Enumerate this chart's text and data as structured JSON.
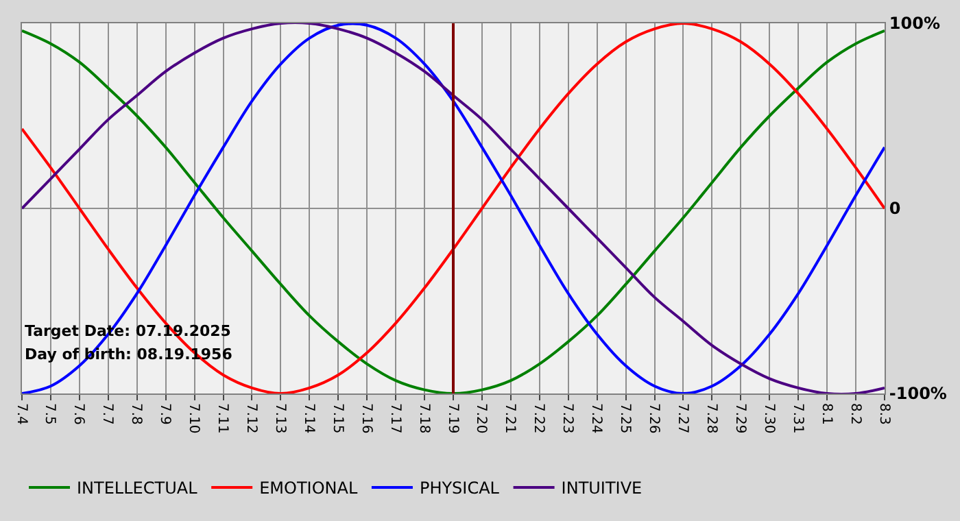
{
  "chart_data": {
    "type": "line",
    "categories": [
      "7.4",
      "7.5",
      "7.6",
      "7.7",
      "7.8",
      "7.9",
      "7.10",
      "7.11",
      "7.12",
      "7.13",
      "7.14",
      "7.15",
      "7.16",
      "7.17",
      "7.18",
      "7.19",
      "7.20",
      "7.21",
      "7.22",
      "7.23",
      "7.24",
      "7.25",
      "7.26",
      "7.27",
      "7.28",
      "7.29",
      "7.30",
      "7.31",
      "8.1",
      "8.2",
      "8.3"
    ],
    "series": [
      {
        "name": "INTELLECTUAL",
        "color": "#008000",
        "values": [
          0.96,
          0.89,
          0.79,
          0.65,
          0.5,
          0.33,
          0.14,
          -0.05,
          -0.23,
          -0.41,
          -0.58,
          -0.72,
          -0.84,
          -0.93,
          -0.98,
          -1,
          -0.98,
          -0.93,
          -0.84,
          -0.72,
          -0.58,
          -0.41,
          -0.23,
          -0.05,
          0.14,
          0.33,
          0.5,
          0.65,
          0.79,
          0.89,
          0.96
        ]
      },
      {
        "name": "EMOTIONAL",
        "color": "#ff0000",
        "values": [
          0.43,
          0.22,
          0,
          -0.22,
          -0.43,
          -0.62,
          -0.78,
          -0.9,
          -0.97,
          -1,
          -0.97,
          -0.9,
          -0.78,
          -0.62,
          -0.43,
          -0.22,
          0,
          0.22,
          0.43,
          0.62,
          0.78,
          0.9,
          0.97,
          1,
          0.97,
          0.9,
          0.78,
          0.62,
          0.43,
          0.22,
          0
        ]
      },
      {
        "name": "PHYSICAL",
        "color": "#0000ff",
        "values": [
          -1,
          -0.96,
          -0.85,
          -0.68,
          -0.46,
          -0.2,
          0.07,
          0.33,
          0.58,
          0.78,
          0.92,
          0.99,
          0.99,
          0.92,
          0.78,
          0.58,
          0.33,
          0.07,
          -0.2,
          -0.46,
          -0.68,
          -0.85,
          -0.96,
          -1,
          -0.96,
          -0.85,
          -0.68,
          -0.46,
          -0.2,
          0.07,
          0.33
        ]
      },
      {
        "name": "INTUITIVE",
        "color": "#4b0082",
        "values": [
          0,
          0.16,
          0.32,
          0.48,
          0.61,
          0.74,
          0.84,
          0.92,
          0.97,
          1,
          1,
          0.97,
          0.92,
          0.84,
          0.74,
          0.61,
          0.48,
          0.32,
          0.16,
          0,
          -0.16,
          -0.32,
          -0.48,
          -0.61,
          -0.74,
          -0.84,
          -0.92,
          -0.97,
          -1,
          -1,
          -0.97
        ]
      }
    ],
    "ylim": [
      -1,
      1
    ],
    "yticks": [
      {
        "value": 1,
        "label": "100%"
      },
      0,
      {
        "value": -1,
        "label": "-100%"
      }
    ],
    "grid": true,
    "legend": "bottom left",
    "marker": "none",
    "line_style": "solid",
    "ref_lines": [
      {
        "axis": "x",
        "value": "7.19",
        "color": "#800000"
      }
    ],
    "annotations": [
      "Target Date: 07.19.2025",
      "Day of birth: 08.19.1956"
    ]
  }
}
